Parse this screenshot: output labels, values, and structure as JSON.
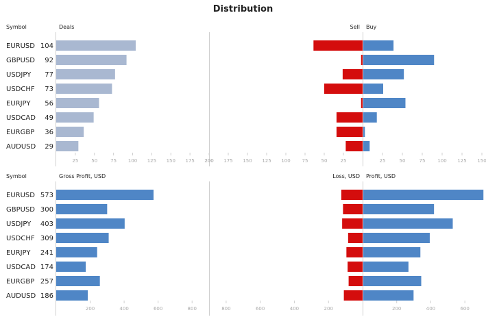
{
  "title": "Distribution",
  "colors": {
    "deals": "#a9b8d1",
    "buy": "#4f86c6",
    "sell": "#d40d0d",
    "axis": "#cfcfcf",
    "tick": "#aaaaaa"
  },
  "chart_data": [
    {
      "type": "bar",
      "id": "deals-panel",
      "column_header": "Symbol",
      "left_header": "Deals",
      "left_header_right": "Sell",
      "right_header": "Buy",
      "categories": [
        "EURUSD",
        "GBPUSD",
        "USDJPY",
        "USDCHF",
        "EURJPY",
        "USDCAD",
        "EURGBP",
        "AUDUSD"
      ],
      "left": {
        "values": [
          104,
          92,
          77,
          73,
          56,
          49,
          36,
          29
        ],
        "xlim": [
          0,
          200
        ],
        "ticks": [
          25,
          50,
          75,
          100,
          125,
          150,
          175,
          200
        ]
      },
      "sell": {
        "values": [
          64,
          2,
          26,
          50,
          2,
          34,
          34,
          22
        ],
        "xlim": [
          0,
          200
        ],
        "ticks": [
          200,
          175,
          150,
          125,
          100,
          75,
          50,
          25
        ]
      },
      "buy": {
        "values": [
          38,
          89,
          51,
          25,
          53,
          17,
          2,
          8
        ],
        "xlim": [
          0,
          150
        ],
        "ticks": [
          25,
          50,
          75,
          100,
          125,
          150
        ]
      }
    },
    {
      "type": "bar",
      "id": "profit-panel",
      "column_header": "Symbol",
      "left_header": "Gross Profit, USD",
      "left_header_right": "Loss, USD",
      "right_header": "Profit, USD",
      "categories": [
        "EURUSD",
        "GBPUSD",
        "USDJPY",
        "USDCHF",
        "EURJPY",
        "USDCAD",
        "EURGBP",
        "AUDUSD"
      ],
      "left": {
        "values": [
          573,
          300,
          403,
          309,
          241,
          174,
          257,
          186
        ],
        "xlim": [
          0,
          900
        ],
        "ticks": [
          200,
          400,
          600,
          800
        ]
      },
      "sell": {
        "values": [
          125,
          115,
          120,
          85,
          95,
          88,
          82,
          110
        ],
        "xlim": [
          0,
          900
        ],
        "ticks": [
          800,
          600,
          400,
          200
        ]
      },
      "buy": {
        "values": [
          705,
          415,
          525,
          390,
          335,
          265,
          340,
          295
        ],
        "xlim": [
          0,
          700
        ],
        "ticks": [
          200,
          400,
          600
        ]
      }
    }
  ]
}
